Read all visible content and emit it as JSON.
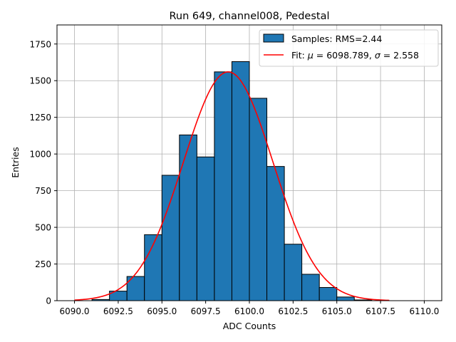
{
  "chart_data": {
    "type": "bar",
    "title": "Run 649, channel008, Pedestal",
    "xlabel": "ADC Counts",
    "ylabel": "Entries",
    "xlim": [
      6089.0,
      6111.0
    ],
    "ylim": [
      0,
      1880
    ],
    "xticks": [
      6090.0,
      6092.5,
      6095.0,
      6097.5,
      6100.0,
      6102.5,
      6105.0,
      6107.5,
      6110.0
    ],
    "xtick_labels": [
      "6090.0",
      "6092.5",
      "6095.0",
      "6097.5",
      "6100.0",
      "6102.5",
      "6105.0",
      "6107.5",
      "6110.0"
    ],
    "yticks": [
      0,
      250,
      500,
      750,
      1000,
      1250,
      1500,
      1750
    ],
    "ytick_labels": [
      "0",
      "250",
      "500",
      "750",
      "1000",
      "1250",
      "1500",
      "1750"
    ],
    "grid": true,
    "legend_position": "top-right",
    "histogram": {
      "name": "Samples: RMS=2.44",
      "color": "#1f77b4",
      "bin_edges": [
        6091,
        6092,
        6093,
        6094,
        6095,
        6096,
        6097,
        6098,
        6099,
        6100,
        6101,
        6102,
        6103,
        6104,
        6105,
        6106,
        6107
      ],
      "counts": [
        8,
        65,
        165,
        450,
        855,
        1130,
        980,
        1560,
        1630,
        1380,
        915,
        385,
        180,
        90,
        25,
        5
      ]
    },
    "fit": {
      "name_prefix": "Fit: ",
      "mu_symbol": "μ",
      "mu_text": " = 6098.789, ",
      "sigma_symbol": "σ",
      "sigma_text": " = 2.558",
      "mu": 6098.789,
      "sigma": 2.558,
      "peak": 1560,
      "x_range": [
        6090.0,
        6108.0
      ],
      "color": "#ff0000"
    }
  }
}
